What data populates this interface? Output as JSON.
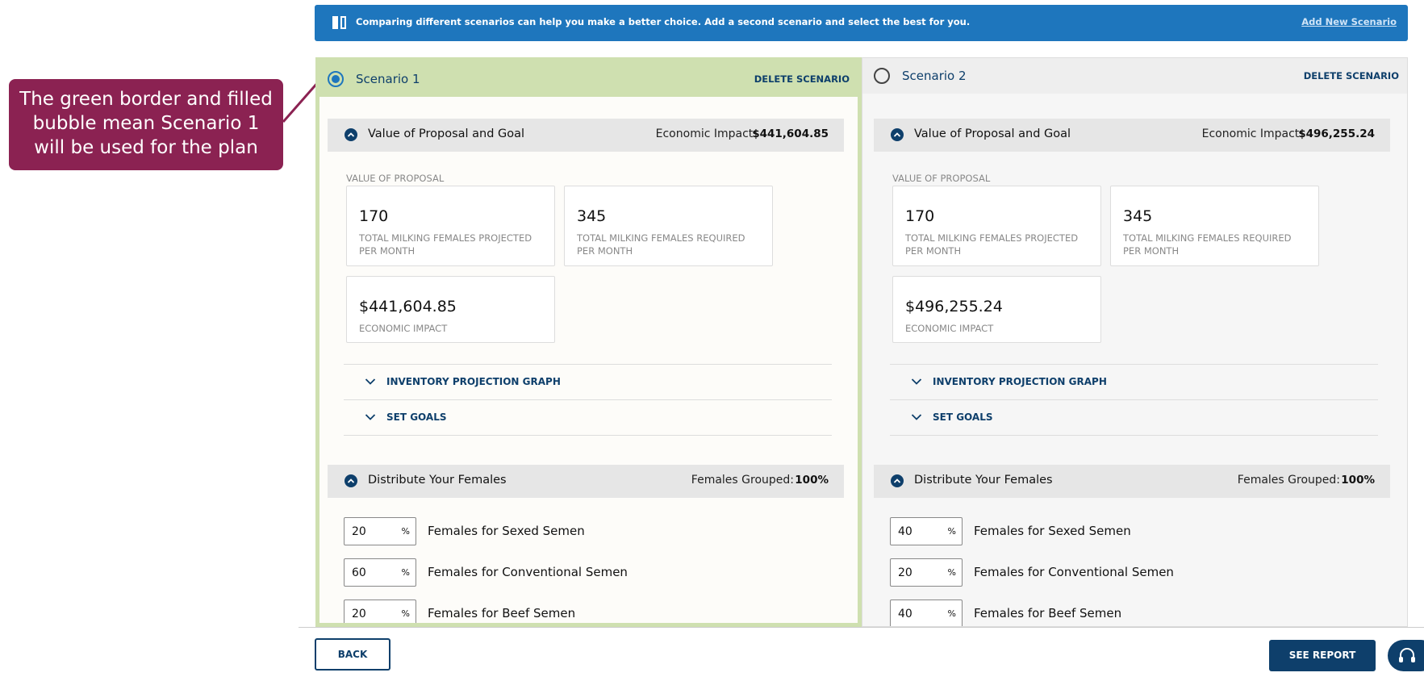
{
  "banner": {
    "text": "Comparing different scenarios can help you make a better choice. Add a second scenario and select the best for you.",
    "link": "Add New Scenario"
  },
  "callout": "The green border and filled bubble mean Scenario 1 will be used for the plan",
  "scenarios": [
    {
      "title": "Scenario 1",
      "selected": true,
      "delete": "DELETE SCENARIO",
      "value_section": {
        "title": "Value of Proposal and Goal",
        "impact_label": "Economic Impact:",
        "impact_value": "$441,604.85",
        "subtitle": "VALUE OF PROPOSAL",
        "cards": [
          {
            "value": "170",
            "label": "TOTAL MILKING FEMALES PROJECTED PER MONTH"
          },
          {
            "value": "345",
            "label": "TOTAL MILKING FEMALES REQUIRED PER MONTH"
          },
          {
            "value": "$441,604.85",
            "label": "ECONOMIC IMPACT"
          }
        ],
        "links": [
          "INVENTORY PROJECTION GRAPH",
          "SET GOALS"
        ]
      },
      "distribute_section": {
        "title": "Distribute Your Females",
        "grouped_label": "Females Grouped:",
        "grouped_value": "100%",
        "unit": "%",
        "rows": [
          {
            "value": "20",
            "label": "Females for Sexed Semen"
          },
          {
            "value": "60",
            "label": "Females for Conventional Semen"
          },
          {
            "value": "20",
            "label": "Females for Beef Semen"
          }
        ]
      }
    },
    {
      "title": "Scenario 2",
      "selected": false,
      "delete": "DELETE SCENARIO",
      "value_section": {
        "title": "Value of Proposal and Goal",
        "impact_label": "Economic Impact:",
        "impact_value": "$496,255.24",
        "subtitle": "VALUE OF PROPOSAL",
        "cards": [
          {
            "value": "170",
            "label": "TOTAL MILKING FEMALES PROJECTED PER MONTH"
          },
          {
            "value": "345",
            "label": "TOTAL MILKING FEMALES REQUIRED PER MONTH"
          },
          {
            "value": "$496,255.24",
            "label": "ECONOMIC IMPACT"
          }
        ],
        "links": [
          "INVENTORY PROJECTION GRAPH",
          "SET GOALS"
        ]
      },
      "distribute_section": {
        "title": "Distribute Your Females",
        "grouped_label": "Females Grouped:",
        "grouped_value": "100%",
        "unit": "%",
        "rows": [
          {
            "value": "40",
            "label": "Females for Sexed Semen"
          },
          {
            "value": "20",
            "label": "Females for Conventional Semen"
          },
          {
            "value": "40",
            "label": "Females for Beef Semen"
          }
        ]
      }
    }
  ],
  "footer": {
    "back": "BACK",
    "report": "SEE REPORT"
  }
}
